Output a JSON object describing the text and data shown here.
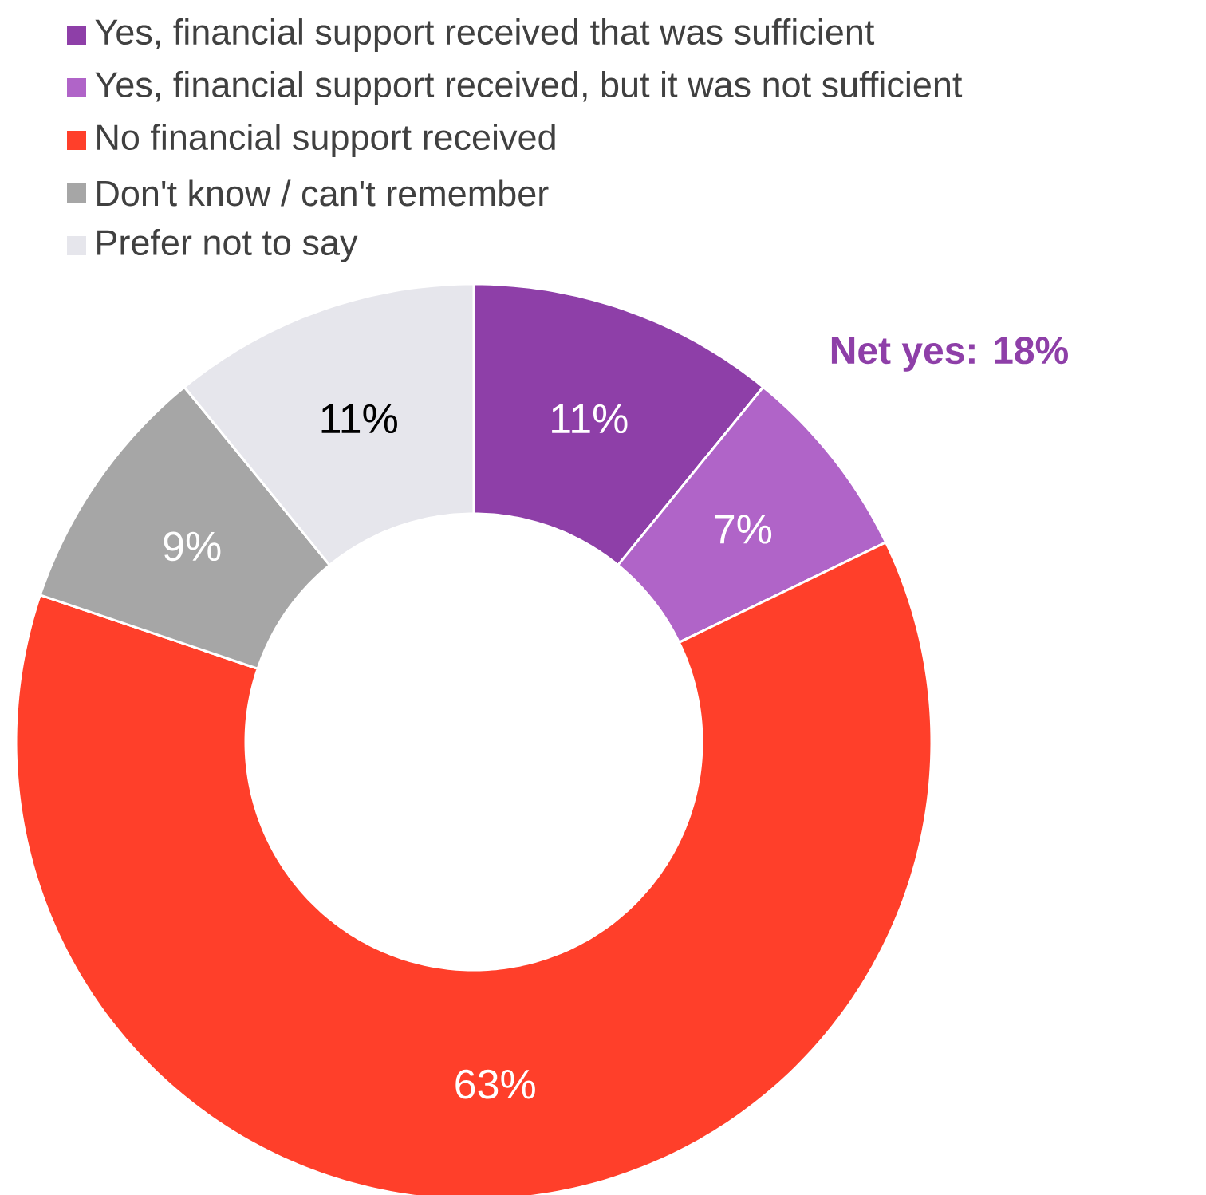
{
  "chart_data": {
    "type": "donut",
    "categories": [
      "Yes, financial support received that was sufficient",
      "Yes, financial support received, but it was not sufficient",
      "No financial support received",
      "Don't know / can't remember",
      "Prefer not to say"
    ],
    "values": [
      11,
      7,
      63,
      9,
      11
    ],
    "value_labels": [
      "11%",
      "7%",
      "63%",
      "9%",
      "11%"
    ],
    "colors": [
      "#8e3fa8",
      "#b064c8",
      "#ff3f2a",
      "#a6a6a6",
      "#e6e6ec"
    ],
    "legend": "top left",
    "annotations": [
      "Net yes: 18%"
    ]
  }
}
